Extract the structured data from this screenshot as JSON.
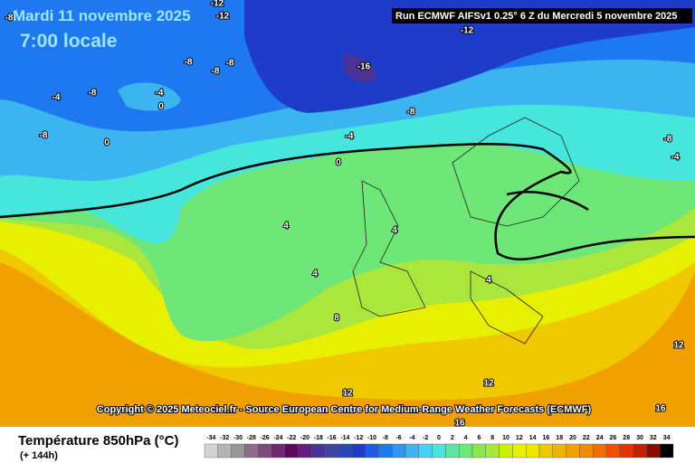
{
  "header": {
    "date": "Mardi 11 novembre 2025",
    "time": "7:00 locale",
    "run": "Run ECMWF AIFSv1 0.25° 6 Z du Mercredi 5 novembre 2025"
  },
  "map": {
    "contour_labels": [
      "-12",
      "-12",
      "-8",
      "-12",
      "-16",
      "-8",
      "-8",
      "-8",
      "-4",
      "-8",
      "-8",
      "-4",
      "0",
      "0",
      "-4",
      "0",
      "-8",
      "-8",
      "-4",
      "4",
      "4",
      "4",
      "4",
      "8",
      "12",
      "12",
      "12",
      "16",
      "16"
    ],
    "copyright": "Copyright © 2025 Meteociel.fr - Source European Centre for Medium-Range Weather Forecasts (ECMWF)"
  },
  "legend": {
    "title": "Température 850hPa (°C)",
    "subtitle": "(+ 144h)",
    "ticks": [
      -34,
      -32,
      -30,
      -28,
      -26,
      -24,
      -22,
      -20,
      -18,
      -16,
      -14,
      -12,
      -10,
      -8,
      -6,
      -4,
      -2,
      0,
      2,
      4,
      6,
      8,
      10,
      12,
      14,
      16,
      18,
      20,
      22,
      24,
      26,
      28,
      30,
      32,
      34
    ],
    "colors": [
      "#d2d2d2",
      "#b4b4b4",
      "#969696",
      "#8c6e8c",
      "#7d4b7d",
      "#6e286e",
      "#5a0a5a",
      "#641e82",
      "#4b3296",
      "#3c46a0",
      "#2846b4",
      "#1e3cc8",
      "#1e5ae6",
      "#1e78f0",
      "#3296f0",
      "#3cb4f0",
      "#46d2f0",
      "#46e6dc",
      "#5ae6a0",
      "#6ee678",
      "#8ce650",
      "#aae63c",
      "#c8f000",
      "#e6f000",
      "#f0e600",
      "#f0c800",
      "#f0b400",
      "#f0a000",
      "#f08c00",
      "#f06e00",
      "#f05000",
      "#e63200",
      "#c81e00",
      "#8c0a00",
      "#000000"
    ]
  }
}
